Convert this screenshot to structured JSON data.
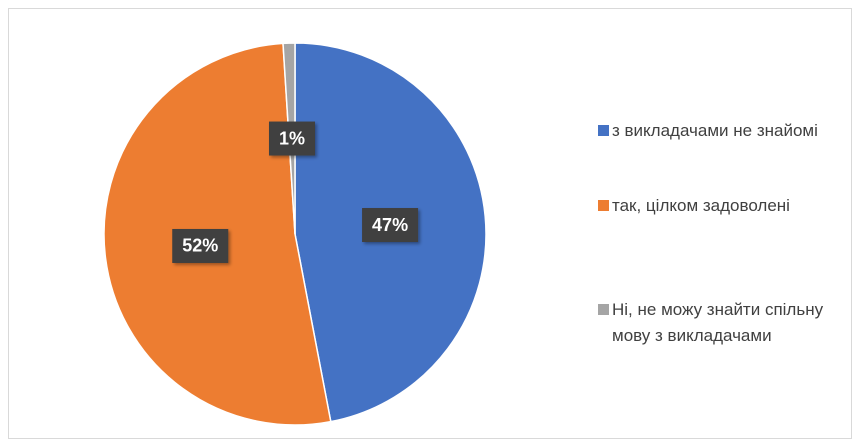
{
  "chart_data": {
    "type": "pie",
    "categories": [
      "з викладачами не знайомі",
      "так, цілком задоволені",
      "Ні, не можу знайти спільну мову з викладачами"
    ],
    "values": [
      47,
      52,
      1
    ],
    "value_labels": [
      "47%",
      "52%",
      "1%"
    ],
    "colors": [
      "#4472c4",
      "#ed7d31",
      "#a5a5a5"
    ],
    "legend": "right"
  }
}
